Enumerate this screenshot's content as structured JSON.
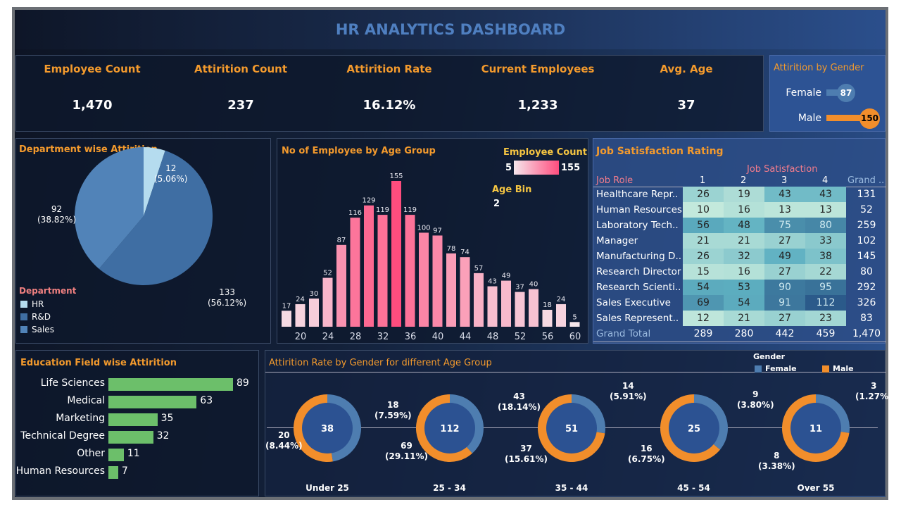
{
  "title": "HR ANALYTICS DASHBOARD",
  "kpis": [
    {
      "label": "Employee Count",
      "value": "1,470"
    },
    {
      "label": "Attirition Count",
      "value": "237"
    },
    {
      "label": "Attirition Rate",
      "value": "16.12%"
    },
    {
      "label": "Current Employees",
      "value": "1,233"
    },
    {
      "label": "Avg. Age",
      "value": "37"
    }
  ],
  "gender_attrition": {
    "title": "Attirition  by Gender",
    "items": [
      {
        "label": "Female",
        "value": 87,
        "text": "87",
        "color": "#4e7db0"
      },
      {
        "label": "Male",
        "value": 150,
        "text": "150",
        "color": "#f28e2b"
      }
    ]
  },
  "department": {
    "title": "Department wise Attirition",
    "legend_title": "Department",
    "slices": [
      {
        "name": "HR",
        "value": 12,
        "label": "12",
        "pct": "(5.06%)",
        "color": "#b5dcef"
      },
      {
        "name": "R&D",
        "value": 133,
        "label": "133",
        "pct": "(56.12%)",
        "color": "#3f6ea3"
      },
      {
        "name": "Sales",
        "value": 92,
        "label": "92",
        "pct": "(38.82%)",
        "color": "#5183b8"
      }
    ]
  },
  "age_chart": {
    "title": "No of Employee by Age Group",
    "legend_title": "Employee Count",
    "legend_min": "5",
    "legend_max": "155",
    "bin_label": "Age Bin",
    "bin_value": "2",
    "chart_data": {
      "type": "bar",
      "x": [
        18,
        20,
        22,
        24,
        26,
        28,
        30,
        32,
        34,
        36,
        38,
        40,
        42,
        44,
        46,
        48,
        50,
        52,
        54,
        56,
        58,
        60
      ],
      "values": [
        17,
        24,
        30,
        52,
        87,
        116,
        129,
        119,
        155,
        119,
        100,
        97,
        78,
        74,
        57,
        43,
        49,
        37,
        40,
        18,
        24,
        5
      ],
      "xticks": [
        "20",
        "24",
        "28",
        "32",
        "36",
        "40",
        "44",
        "48",
        "52",
        "56",
        "60"
      ],
      "color_range": [
        "#f5e6ec",
        "#ff4d7e"
      ]
    }
  },
  "job_satisfaction": {
    "title": "Job Satisfaction Rating",
    "col_group": "Job Satisfaction",
    "row_header": "Job Role",
    "columns": [
      "1",
      "2",
      "3",
      "4"
    ],
    "grand_header": "Grand ..",
    "rows": [
      {
        "role": "Healthcare Repr..",
        "values": [
          26,
          19,
          43,
          43
        ],
        "total": "131"
      },
      {
        "role": "Human Resources",
        "values": [
          10,
          16,
          13,
          13
        ],
        "total": "52"
      },
      {
        "role": "Laboratory Tech..",
        "values": [
          56,
          48,
          75,
          80
        ],
        "total": "259"
      },
      {
        "role": "Manager",
        "values": [
          21,
          21,
          27,
          33
        ],
        "total": "102"
      },
      {
        "role": "Manufacturing D..",
        "values": [
          26,
          32,
          49,
          38
        ],
        "total": "145"
      },
      {
        "role": "Research Director",
        "values": [
          15,
          16,
          27,
          22
        ],
        "total": "80"
      },
      {
        "role": "Research Scienti..",
        "values": [
          54,
          53,
          90,
          95
        ],
        "total": "292"
      },
      {
        "role": "Sales Executive",
        "values": [
          69,
          54,
          91,
          112
        ],
        "total": "326"
      },
      {
        "role": "Sales Represent..",
        "values": [
          12,
          21,
          27,
          23
        ],
        "total": "83"
      }
    ],
    "grand_total_label": "Grand Total",
    "grand_totals": [
      "289",
      "280",
      "442",
      "459",
      "1,470"
    ]
  },
  "education": {
    "title": "Education Field wise Attirition",
    "color": "#6cbf6a",
    "chart_data": {
      "type": "bar",
      "categories": [
        "Life Sciences",
        "Medical",
        "Marketing",
        "Technical Degree",
        "Other",
        "Human Resources"
      ],
      "values": [
        89,
        63,
        35,
        32,
        11,
        7
      ]
    }
  },
  "age_gender": {
    "title": "Attirition Rate by Gender for different Age Group",
    "legend_title": "Gender",
    "legend": [
      {
        "name": "Female",
        "color": "#4e7db0"
      },
      {
        "name": "Male",
        "color": "#f28e2b"
      }
    ],
    "chart_data": {
      "type": "pie",
      "groups": [
        {
          "group": "Under 25",
          "total": "38",
          "female": 18,
          "female_label": "18",
          "female_pct": "(7.59%)",
          "male": 20,
          "male_label": "20",
          "male_pct": "(8.44%)"
        },
        {
          "group": "25 - 34",
          "total": "112",
          "female": 43,
          "female_label": "43",
          "female_pct": "(18.14%)",
          "male": 69,
          "male_label": "69",
          "male_pct": "(29.11%)"
        },
        {
          "group": "35 - 44",
          "total": "51",
          "female": 14,
          "female_label": "14",
          "female_pct": "(5.91%)",
          "male": 37,
          "male_label": "37",
          "male_pct": "(15.61%)"
        },
        {
          "group": "45 - 54",
          "total": "25",
          "female": 9,
          "female_label": "9",
          "female_pct": "(3.80%)",
          "male": 16,
          "male_label": "16",
          "male_pct": "(6.75%)"
        },
        {
          "group": "Over 55",
          "total": "11",
          "female": 3,
          "female_label": "3",
          "female_pct": "(1.27%)",
          "male": 8,
          "male_label": "8",
          "male_pct": "(3.38%)"
        }
      ]
    }
  }
}
